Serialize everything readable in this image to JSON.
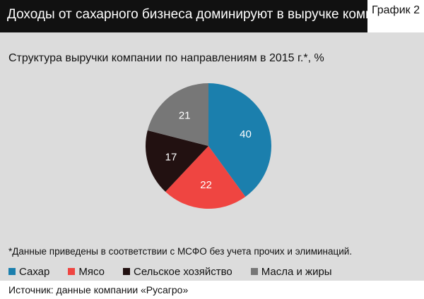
{
  "header": {
    "title": "Доходы от сахарного бизнеса доминируют в выручке компании",
    "tag": "График 2"
  },
  "chart_data": {
    "type": "pie",
    "title": "Структура выручки компании по направлениям в 2015 г.*, %",
    "slices": [
      {
        "name": "Сахар",
        "value": 40,
        "color": "#1b7fad"
      },
      {
        "name": "Мясо",
        "value": 22,
        "color": "#ef4541"
      },
      {
        "name": "Сельское хозяйство",
        "value": 17,
        "color": "#221111"
      },
      {
        "name": "Масла и жиры",
        "value": 21,
        "color": "#777777"
      }
    ],
    "start": "12 o'clock",
    "direction": "clockwise",
    "legend_position": "bottom"
  },
  "footnote": "*Данные приведены в соответствии с МСФО без учета прочих и элиминаций.",
  "source": "Источник: данные компании «Русагро»"
}
